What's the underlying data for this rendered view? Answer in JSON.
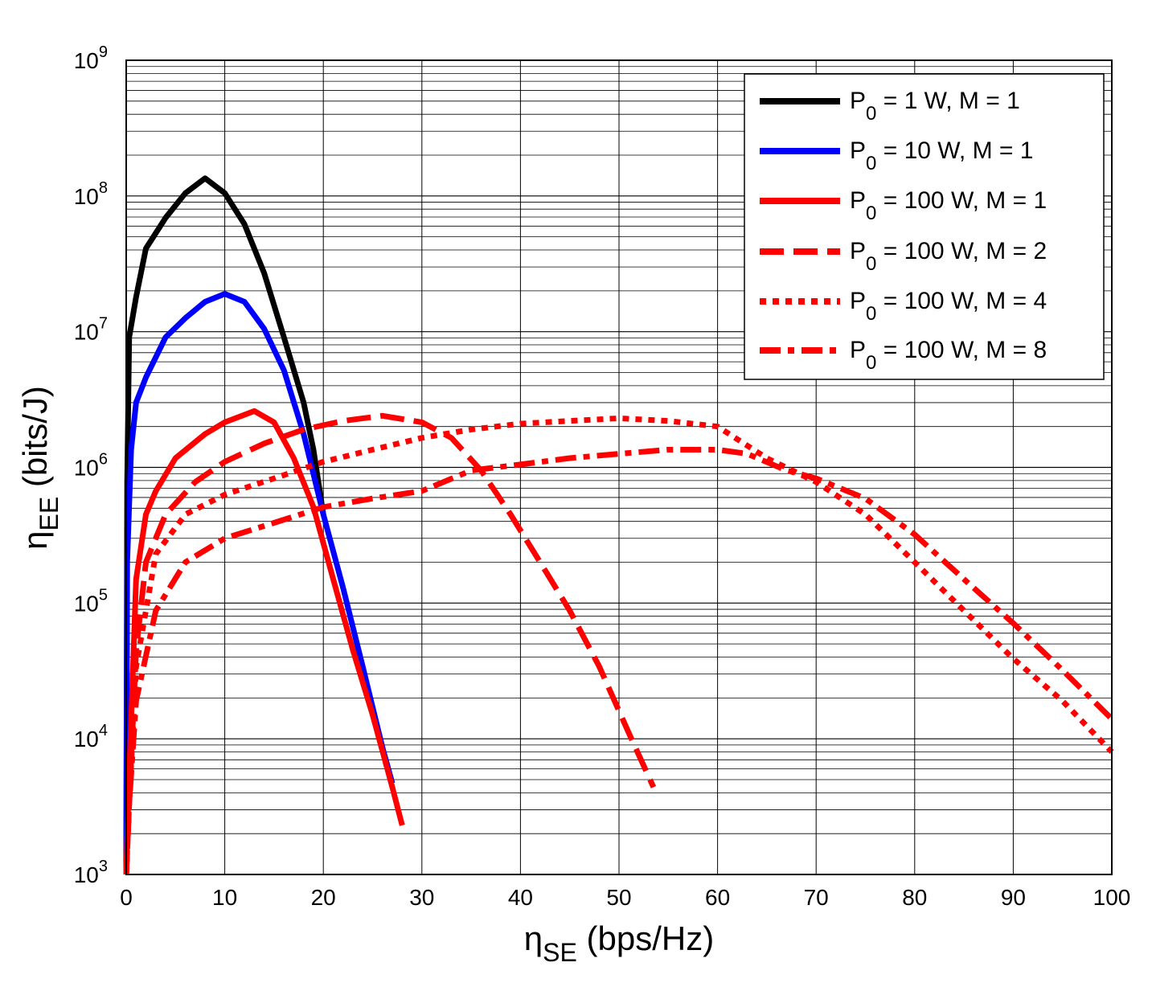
{
  "chart_data": {
    "type": "line",
    "title": "",
    "xlabel": {
      "main": "η",
      "sub": "SE",
      "unit": " (bps/Hz)"
    },
    "ylabel": {
      "main": "η",
      "sub": "EE",
      "unit": " (bits/J)"
    },
    "xlim": [
      0,
      100
    ],
    "ylim": [
      1000,
      1000000000
    ],
    "yscale": "log",
    "grid": true,
    "minor_grid": true,
    "legend_position": "top-right",
    "xticks": [
      0,
      10,
      20,
      30,
      40,
      50,
      60,
      70,
      80,
      90,
      100
    ],
    "yticks": [
      {
        "base": "10",
        "exp": "3"
      },
      {
        "base": "10",
        "exp": "4"
      },
      {
        "base": "10",
        "exp": "5"
      },
      {
        "base": "10",
        "exp": "6"
      },
      {
        "base": "10",
        "exp": "7"
      },
      {
        "base": "10",
        "exp": "8"
      },
      {
        "base": "10",
        "exp": "9"
      }
    ],
    "series": [
      {
        "legend": {
          "p": "P",
          "sub": "0",
          "rest": " = 1 W,      M = 1"
        },
        "color": "#000000",
        "style": "solid",
        "x": [
          0,
          0.1,
          0.3,
          1,
          2,
          4,
          6,
          8,
          10,
          12,
          14,
          16,
          18,
          19,
          20
        ],
        "y": [
          1000,
          780000,
          9100000,
          18000000,
          41000000,
          69000000,
          105000000,
          135000000,
          105000000,
          62000000,
          27000000,
          9100000,
          3000000,
          1350000,
          450000
        ]
      },
      {
        "legend": {
          "p": "P",
          "sub": "0",
          "rest": " = 10 W,    M = 1"
        },
        "color": "#0000ff",
        "style": "solid",
        "x": [
          0,
          0.1,
          0.5,
          1,
          2,
          4,
          6,
          8,
          10,
          12,
          14,
          16,
          18,
          20,
          22,
          24,
          26,
          27
        ],
        "y": [
          1000,
          200000,
          1350000,
          3000000,
          4600000,
          9100000,
          12600000,
          16600000,
          19000000,
          16600000,
          10500000,
          5200000,
          1760000,
          450000,
          130000,
          34000,
          8600,
          4700
        ]
      },
      {
        "legend": {
          "p": "P",
          "sub": "0",
          "rest": " = 100 W,  M = 1"
        },
        "color": "#ff0000",
        "style": "solid",
        "x": [
          0,
          0.2,
          1,
          2,
          3,
          5,
          8,
          10,
          13,
          15,
          17,
          19,
          21,
          23,
          25,
          27,
          28
        ],
        "y": [
          1000,
          3300,
          150000,
          450000,
          670000,
          1170000,
          1760000,
          2150000,
          2600000,
          2150000,
          1170000,
          510000,
          150000,
          45000,
          15000,
          4400,
          2300
        ]
      },
      {
        "legend": {
          "p": "P",
          "sub": "0",
          "rest": " = 100 W,  M = 2"
        },
        "color": "#ff0000",
        "style": "dash",
        "x": [
          0,
          0.3,
          1,
          2,
          4,
          7,
          10,
          14,
          18,
          22,
          26,
          30,
          33,
          36,
          39,
          42,
          45,
          48,
          51,
          53.5
        ],
        "y": [
          1000,
          3300,
          45000,
          200000,
          450000,
          780000,
          1100000,
          1500000,
          1900000,
          2200000,
          2400000,
          2150000,
          1650000,
          950000,
          450000,
          200000,
          88000,
          34000,
          11000,
          4400
        ]
      },
      {
        "legend": {
          "p": "P",
          "sub": "0",
          "rest": " = 100 W,  M = 4"
        },
        "color": "#ff0000",
        "style": "dot",
        "x": [
          0,
          0.3,
          1,
          3,
          6,
          10,
          15,
          20,
          25,
          30,
          35,
          40,
          45,
          50,
          55,
          60,
          65,
          70,
          75,
          80,
          85,
          90,
          95,
          100
        ],
        "y": [
          1000,
          3300,
          34000,
          230000,
          450000,
          630000,
          830000,
          1100000,
          1350000,
          1650000,
          1900000,
          2100000,
          2200000,
          2300000,
          2200000,
          2000000,
          1170000,
          780000,
          450000,
          200000,
          88000,
          39000,
          19000,
          8000
        ]
      },
      {
        "legend": {
          "p": "P",
          "sub": "0",
          "rest": " = 100 W,  M = 8"
        },
        "color": "#ff0000",
        "style": "dashdot",
        "x": [
          0,
          0.3,
          1,
          3,
          6,
          10,
          15,
          20,
          25,
          30,
          35,
          40,
          45,
          50,
          55,
          60,
          63,
          67,
          70,
          75,
          80,
          85,
          90,
          95,
          100
        ],
        "y": [
          1000,
          3300,
          19000,
          88000,
          200000,
          300000,
          390000,
          510000,
          590000,
          670000,
          950000,
          1050000,
          1170000,
          1260000,
          1350000,
          1350000,
          1260000,
          950000,
          830000,
          590000,
          320000,
          150000,
          71000,
          32000,
          14000
        ]
      }
    ]
  }
}
